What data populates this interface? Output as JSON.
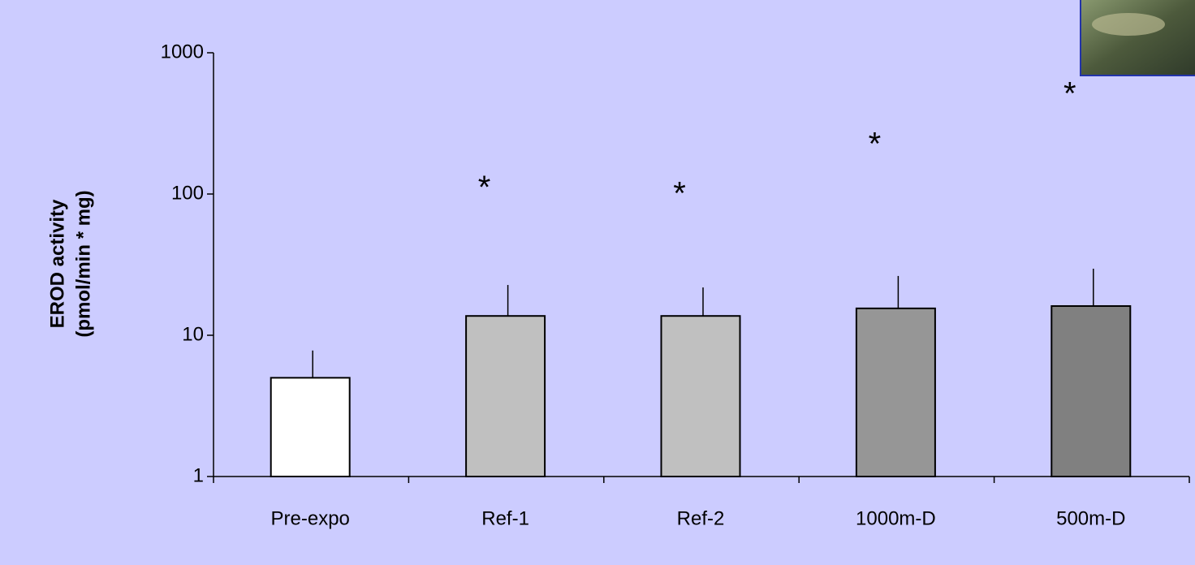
{
  "chart_data": {
    "type": "bar",
    "ylabel": [
      "EROD activity",
      "(pmol/min * mg)"
    ],
    "categories": [
      "Pre-expo",
      "Ref-1",
      "Ref-2",
      "1000m-D",
      "500m-D"
    ],
    "values": [
      5,
      13.7,
      13.7,
      15.5,
      16.1
    ],
    "errors": [
      2.8,
      9,
      8.1,
      10.8,
      13.5
    ],
    "colors": [
      "#ffffff",
      "#c0c0c0",
      "#c0c0c0",
      "#969696",
      "#808080"
    ],
    "markers": [
      null,
      "*",
      "*",
      "*",
      "*"
    ],
    "marker_y": [
      null,
      120,
      108,
      243,
      550
    ],
    "log_scale": true,
    "ylim": [
      1,
      1000
    ],
    "yticks": [
      1,
      10,
      100,
      1000
    ]
  }
}
